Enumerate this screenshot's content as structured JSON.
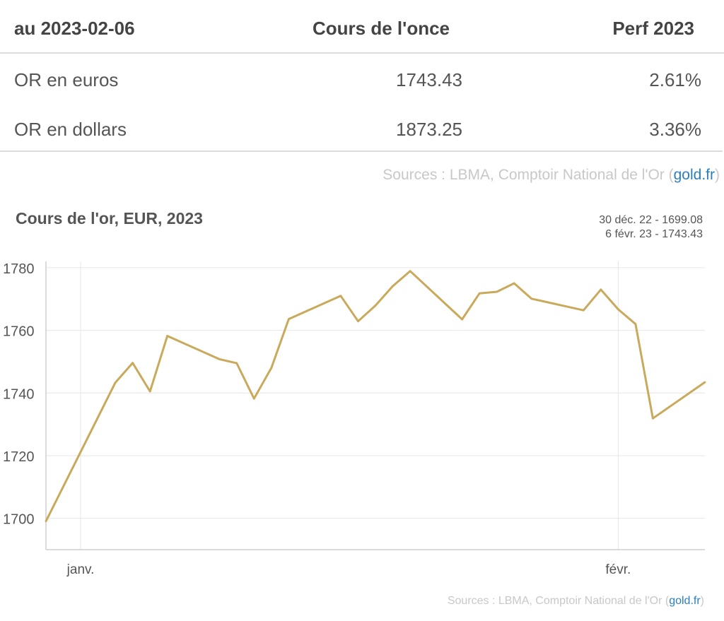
{
  "table": {
    "headers": [
      "au 2023-02-06",
      "Cours de l'once",
      "Perf 2023"
    ],
    "rows": [
      {
        "label": "OR en euros",
        "price": "1743.43",
        "perf": "2.61%"
      },
      {
        "label": "OR en dollars",
        "price": "1873.25",
        "perf": "3.36%"
      }
    ]
  },
  "sources": {
    "prefix": "Sources : LBMA, Comptoir National de l'Or (",
    "link": "gold.fr",
    "suffix": ")"
  },
  "chart_data": {
    "type": "line",
    "title": "Cours de l'or, EUR, 2023",
    "range_start": "30 déc. 22 - 1699.08",
    "range_end": "6 févr. 23 - 1743.43",
    "line_color": "#c9a95c",
    "ylim": [
      1690,
      1782
    ],
    "yticks": [
      1700,
      1720,
      1740,
      1760,
      1780
    ],
    "x_tick_labels": [
      {
        "label": "janv.",
        "date": "2023-01-01"
      },
      {
        "label": "févr.",
        "date": "2023-02-01"
      }
    ],
    "x_range": [
      "2022-12-30",
      "2023-02-06"
    ],
    "series": [
      {
        "points": [
          [
            "2022-12-30",
            1699.08
          ],
          [
            "2023-01-03",
            1743.3
          ],
          [
            "2023-01-04",
            1749.6
          ],
          [
            "2023-01-05",
            1740.5
          ],
          [
            "2023-01-06",
            1758.2
          ],
          [
            "2023-01-09",
            1750.8
          ],
          [
            "2023-01-10",
            1749.5
          ],
          [
            "2023-01-11",
            1738.2
          ],
          [
            "2023-01-12",
            1748.0
          ],
          [
            "2023-01-13",
            1763.6
          ],
          [
            "2023-01-16",
            1771.0
          ],
          [
            "2023-01-17",
            1762.9
          ],
          [
            "2023-01-18",
            1767.9
          ],
          [
            "2023-01-19",
            1774.1
          ],
          [
            "2023-01-20",
            1778.9
          ],
          [
            "2023-01-23",
            1763.5
          ],
          [
            "2023-01-24",
            1771.8
          ],
          [
            "2023-01-25",
            1772.3
          ],
          [
            "2023-01-26",
            1775.0
          ],
          [
            "2023-01-27",
            1770.1
          ],
          [
            "2023-01-30",
            1766.4
          ],
          [
            "2023-01-31",
            1773.0
          ],
          [
            "2023-02-01",
            1766.7
          ],
          [
            "2023-02-02",
            1762.0
          ],
          [
            "2023-02-03",
            1731.9
          ],
          [
            "2023-02-06",
            1743.43
          ]
        ]
      }
    ]
  }
}
